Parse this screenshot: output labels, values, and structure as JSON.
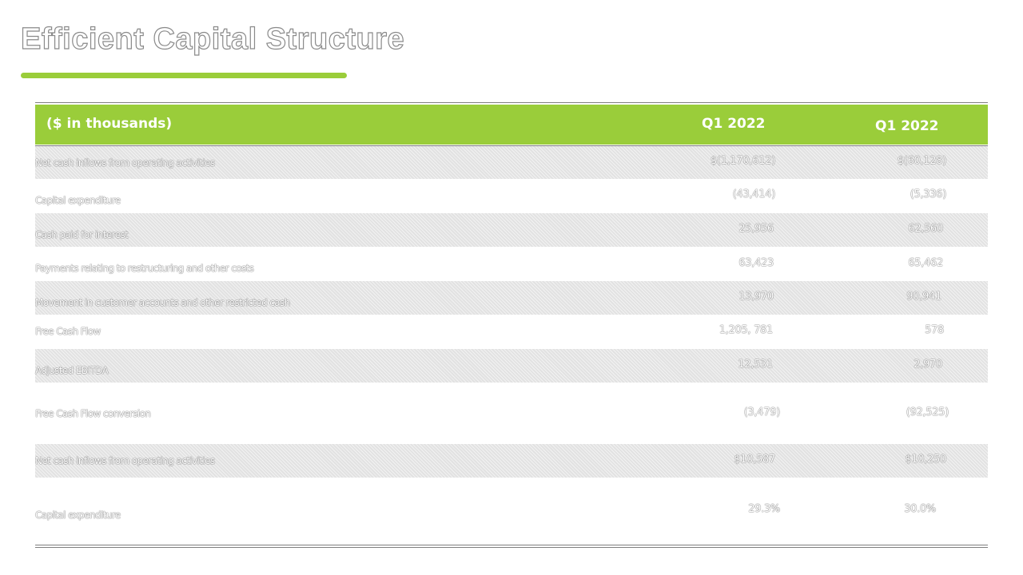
{
  "title": "Efficient Capital Structure",
  "colors": {
    "accent": "#9acd3a",
    "rule": "#7f7f7f",
    "shade": "#e2e2e2"
  },
  "table": {
    "header": {
      "label": "($ in thousands)",
      "col1": "Q1 2022",
      "col2": "Q1 2022"
    },
    "rows": [
      {
        "label": "Net cash inflows from operating activities",
        "col1": "$(1,170,612)",
        "col2": "$(60,128)"
      },
      {
        "label": "Capital expenditure",
        "col1": "(43,414)",
        "col2": "(5,336)"
      },
      {
        "label": "Cash paid for interest",
        "col1": "25,956",
        "col2": "62,560"
      },
      {
        "label": "Payments relating to restructuring and other costs",
        "col1": "63,423",
        "col2": "65,462"
      },
      {
        "label": "Movement in customer accounts and other restricted cash",
        "col1": "13,970",
        "col2": "90,941"
      },
      {
        "label": "Free Cash Flow",
        "col1": "1,205, 781",
        "col2": "578"
      },
      {
        "label": "Adjusted EBITDA",
        "col1": "12,531",
        "col2": "2,970"
      },
      {
        "label": "Free Cash Flow conversion",
        "col1": "(3,479)",
        "col2": "(92,525)"
      },
      {
        "label": "Net cash inflows from operating activities",
        "col1": "$10,587",
        "col2": "$10,250"
      },
      {
        "label": "Capital expenditure",
        "col1": "29.3%",
        "col2": "30.0%"
      }
    ]
  }
}
